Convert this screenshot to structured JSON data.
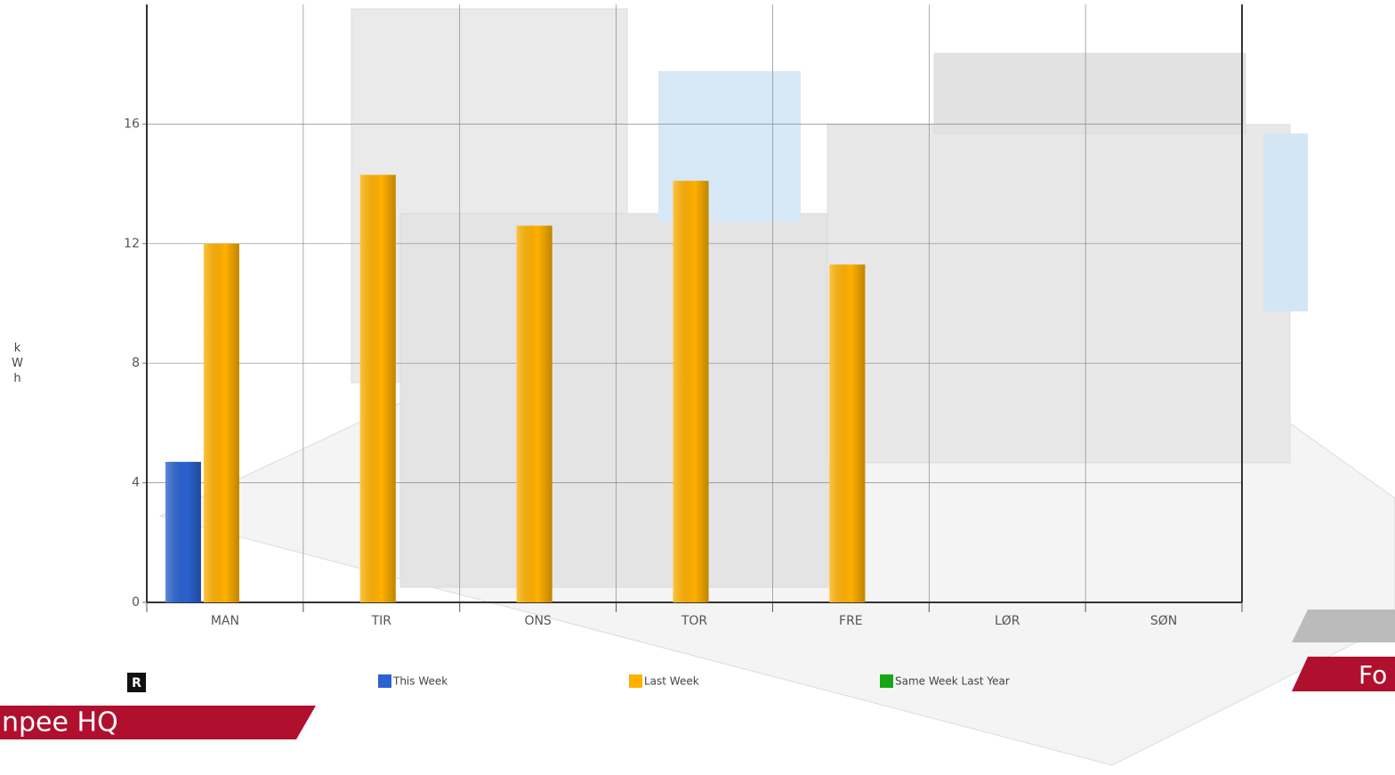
{
  "chart_data": {
    "type": "bar",
    "y_label": "kWh",
    "categories": [
      "MAN",
      "TIR",
      "ONS",
      "TOR",
      "FRE",
      "LØR",
      "SØN"
    ],
    "series": [
      {
        "name": "This Week",
        "color": "#2a62d0",
        "values": [
          4.7,
          null,
          null,
          null,
          null,
          null,
          null
        ]
      },
      {
        "name": "Last Week",
        "color": "#ffb000",
        "values": [
          12,
          14.3,
          12.6,
          14.1,
          11.3,
          null,
          null
        ]
      },
      {
        "name": "Same Week Last Year",
        "color": "#14a814",
        "values": [
          null,
          null,
          null,
          null,
          null,
          null,
          null
        ]
      }
    ],
    "ylim": [
      0,
      20
    ],
    "yticks": [
      0,
      4,
      8,
      12,
      16
    ],
    "grid": true
  },
  "badge": "R",
  "building_label": "npee HQ",
  "tab_label": "Fo"
}
